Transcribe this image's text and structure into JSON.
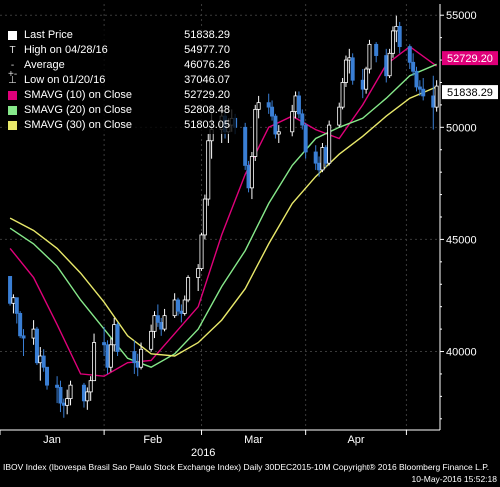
{
  "chart_data": {
    "type": "candlestick",
    "y_axis": {
      "ticks": [
        40000,
        45000,
        50000,
        55000
      ],
      "tick_labels": [
        "40000",
        "45000",
        "50000",
        "55000"
      ],
      "range": [
        36500,
        55500
      ],
      "side": "right",
      "gridlines": true
    },
    "x_axis": {
      "month_labels": [
        "Jan",
        "Feb",
        "Mar",
        "Apr"
      ],
      "year_label": "2016",
      "range_start": "2016-01-01",
      "range_end": "2016-05-11"
    },
    "legend": [
      {
        "label": "Last Price",
        "value": "51838.29",
        "color": "#ffffff",
        "symbol": "box"
      },
      {
        "label": "High on 04/28/16",
        "value": "54977.70",
        "color": "#dddddd",
        "symbol": "T"
      },
      {
        "label": "Average",
        "value": "46076.26",
        "color": "#dddddd",
        "symbol": "-+-"
      },
      {
        "label": "Low on 01/20/16",
        "value": "37046.07",
        "color": "#dddddd",
        "symbol": "⊥"
      },
      {
        "label": "SMAVG (10) on Close",
        "value": "52729.20",
        "color": "#e0007a",
        "symbol": "box"
      },
      {
        "label": "SMAVG (20) on Close",
        "value": "52808.48",
        "color": "#86e88a",
        "symbol": "box"
      },
      {
        "label": "SMAVG (30) on Close",
        "value": "51803.05",
        "color": "#e8e86a",
        "symbol": "box"
      }
    ],
    "price_tags": [
      {
        "value": 52729.2,
        "text": "52729.20",
        "bg": "#e0007a",
        "fg": "#ffffff"
      },
      {
        "value": 51838.29,
        "text": "51838.29",
        "bg": "#ffffff",
        "fg": "#000000"
      }
    ],
    "candles": [
      {
        "d": "2016-01-04",
        "o": 43350,
        "h": 43350,
        "l": 42050,
        "c": 42150
      },
      {
        "d": "2016-01-05",
        "o": 42150,
        "h": 42550,
        "l": 41700,
        "c": 42400
      },
      {
        "d": "2016-01-06",
        "o": 42400,
        "h": 42400,
        "l": 41250,
        "c": 41700
      },
      {
        "d": "2016-01-07",
        "o": 41700,
        "h": 41800,
        "l": 40600,
        "c": 40700
      },
      {
        "d": "2016-01-08",
        "o": 40700,
        "h": 41000,
        "l": 39800,
        "c": 40600
      },
      {
        "d": "2016-01-11",
        "o": 40600,
        "h": 41400,
        "l": 40300,
        "c": 41000
      },
      {
        "d": "2016-01-12",
        "o": 41000,
        "h": 41100,
        "l": 39400,
        "c": 39500
      },
      {
        "d": "2016-01-13",
        "o": 39500,
        "h": 40200,
        "l": 38700,
        "c": 39800
      },
      {
        "d": "2016-01-14",
        "o": 39800,
        "h": 40100,
        "l": 39100,
        "c": 39300
      },
      {
        "d": "2016-01-15",
        "o": 39300,
        "h": 39300,
        "l": 38300,
        "c": 38500
      },
      {
        "d": "2016-01-18",
        "o": 38500,
        "h": 38900,
        "l": 37700,
        "c": 38400
      },
      {
        "d": "2016-01-19",
        "o": 38400,
        "h": 38700,
        "l": 37300,
        "c": 37700
      },
      {
        "d": "2016-01-20",
        "o": 37700,
        "h": 37900,
        "l": 37046,
        "c": 37600
      },
      {
        "d": "2016-01-21",
        "o": 37600,
        "h": 38300,
        "l": 37200,
        "c": 37900
      },
      {
        "d": "2016-01-22",
        "o": 37900,
        "h": 38700,
        "l": 37600,
        "c": 38500
      },
      {
        "d": "2016-01-26",
        "o": 38500,
        "h": 38600,
        "l": 37500,
        "c": 37800
      },
      {
        "d": "2016-01-27",
        "o": 37800,
        "h": 38400,
        "l": 37400,
        "c": 38200
      },
      {
        "d": "2016-01-28",
        "o": 38200,
        "h": 38900,
        "l": 37800,
        "c": 38700
      },
      {
        "d": "2016-01-29",
        "o": 38700,
        "h": 40800,
        "l": 38700,
        "c": 40400
      },
      {
        "d": "2016-02-01",
        "o": 40400,
        "h": 41100,
        "l": 39800,
        "c": 40300
      },
      {
        "d": "2016-02-02",
        "o": 40300,
        "h": 40500,
        "l": 39000,
        "c": 39300
      },
      {
        "d": "2016-02-03",
        "o": 39300,
        "h": 40600,
        "l": 39100,
        "c": 40300
      },
      {
        "d": "2016-02-04",
        "o": 40300,
        "h": 41500,
        "l": 40000,
        "c": 41200
      },
      {
        "d": "2016-02-05",
        "o": 41200,
        "h": 41300,
        "l": 39800,
        "c": 40000
      },
      {
        "d": "2016-02-10",
        "o": 40000,
        "h": 40500,
        "l": 39000,
        "c": 39500
      },
      {
        "d": "2016-02-11",
        "o": 39500,
        "h": 39900,
        "l": 38900,
        "c": 39300
      },
      {
        "d": "2016-02-12",
        "o": 39300,
        "h": 40400,
        "l": 39200,
        "c": 40100
      },
      {
        "d": "2016-02-15",
        "o": 40100,
        "h": 41200,
        "l": 40000,
        "c": 40900
      },
      {
        "d": "2016-02-16",
        "o": 40900,
        "h": 41800,
        "l": 40600,
        "c": 41600
      },
      {
        "d": "2016-02-17",
        "o": 41600,
        "h": 42100,
        "l": 41100,
        "c": 41300
      },
      {
        "d": "2016-02-18",
        "o": 41300,
        "h": 41500,
        "l": 40700,
        "c": 41000
      },
      {
        "d": "2016-02-19",
        "o": 41000,
        "h": 41900,
        "l": 40900,
        "c": 41600
      },
      {
        "d": "2016-02-22",
        "o": 41600,
        "h": 42600,
        "l": 41500,
        "c": 42300
      },
      {
        "d": "2016-02-23",
        "o": 42300,
        "h": 42400,
        "l": 41600,
        "c": 41800
      },
      {
        "d": "2016-02-24",
        "o": 41800,
        "h": 42100,
        "l": 41300,
        "c": 41700
      },
      {
        "d": "2016-02-25",
        "o": 41700,
        "h": 42500,
        "l": 41600,
        "c": 42300
      },
      {
        "d": "2016-02-26",
        "o": 42300,
        "h": 43400,
        "l": 42200,
        "c": 43300
      },
      {
        "d": "2016-02-29",
        "o": 43300,
        "h": 43900,
        "l": 42700,
        "c": 43700
      },
      {
        "d": "2016-03-01",
        "o": 43700,
        "h": 45300,
        "l": 43600,
        "c": 45200
      },
      {
        "d": "2016-03-02",
        "o": 45200,
        "h": 47000,
        "l": 45000,
        "c": 46800
      },
      {
        "d": "2016-03-03",
        "o": 46800,
        "h": 49700,
        "l": 46500,
        "c": 49400
      },
      {
        "d": "2016-03-04",
        "o": 49400,
        "h": 50900,
        "l": 48600,
        "c": 49900
      },
      {
        "d": "2016-03-07",
        "o": 49900,
        "h": 51000,
        "l": 49300,
        "c": 50500
      },
      {
        "d": "2016-03-08",
        "o": 50500,
        "h": 50700,
        "l": 49500,
        "c": 49800
      },
      {
        "d": "2016-03-09",
        "o": 49800,
        "h": 50400,
        "l": 49300,
        "c": 50100
      },
      {
        "d": "2016-03-10",
        "o": 50100,
        "h": 50800,
        "l": 49800,
        "c": 50400
      },
      {
        "d": "2016-03-11",
        "o": 50400,
        "h": 50600,
        "l": 49700,
        "c": 50000
      },
      {
        "d": "2016-03-14",
        "o": 50000,
        "h": 50200,
        "l": 48100,
        "c": 48300
      },
      {
        "d": "2016-03-15",
        "o": 48300,
        "h": 48500,
        "l": 47100,
        "c": 47300
      },
      {
        "d": "2016-03-16",
        "o": 47300,
        "h": 48900,
        "l": 46800,
        "c": 48700
      },
      {
        "d": "2016-03-17",
        "o": 48700,
        "h": 51000,
        "l": 48500,
        "c": 50800
      },
      {
        "d": "2016-03-18",
        "o": 50800,
        "h": 51400,
        "l": 50400,
        "c": 51100
      },
      {
        "d": "2016-03-21",
        "o": 51100,
        "h": 51500,
        "l": 50600,
        "c": 50900
      },
      {
        "d": "2016-03-22",
        "o": 50900,
        "h": 51200,
        "l": 50300,
        "c": 50500
      },
      {
        "d": "2016-03-23",
        "o": 50500,
        "h": 50600,
        "l": 49500,
        "c": 49700
      },
      {
        "d": "2016-03-24",
        "o": 49700,
        "h": 50100,
        "l": 49300,
        "c": 49800
      },
      {
        "d": "2016-03-28",
        "o": 49800,
        "h": 51000,
        "l": 49600,
        "c": 50700
      },
      {
        "d": "2016-03-29",
        "o": 50700,
        "h": 51600,
        "l": 50400,
        "c": 51400
      },
      {
        "d": "2016-03-30",
        "o": 51400,
        "h": 51600,
        "l": 50400,
        "c": 50600
      },
      {
        "d": "2016-03-31",
        "o": 50600,
        "h": 50800,
        "l": 49900,
        "c": 50100
      },
      {
        "d": "2016-04-01",
        "o": 50100,
        "h": 50200,
        "l": 48600,
        "c": 48900
      },
      {
        "d": "2016-04-04",
        "o": 48900,
        "h": 49200,
        "l": 48100,
        "c": 48400
      },
      {
        "d": "2016-04-05",
        "o": 48400,
        "h": 48700,
        "l": 47800,
        "c": 48100
      },
      {
        "d": "2016-04-06",
        "o": 48100,
        "h": 49300,
        "l": 48000,
        "c": 49100
      },
      {
        "d": "2016-04-07",
        "o": 49100,
        "h": 49200,
        "l": 48200,
        "c": 48400
      },
      {
        "d": "2016-04-08",
        "o": 48400,
        "h": 50300,
        "l": 48300,
        "c": 50100
      },
      {
        "d": "2016-04-11",
        "o": 50100,
        "h": 51100,
        "l": 50000,
        "c": 50900
      },
      {
        "d": "2016-04-12",
        "o": 50900,
        "h": 52200,
        "l": 50800,
        "c": 52000
      },
      {
        "d": "2016-04-13",
        "o": 52000,
        "h": 53200,
        "l": 51800,
        "c": 53000
      },
      {
        "d": "2016-04-14",
        "o": 53000,
        "h": 53500,
        "l": 52400,
        "c": 53100
      },
      {
        "d": "2016-04-15",
        "o": 53100,
        "h": 53300,
        "l": 51900,
        "c": 52100
      },
      {
        "d": "2016-04-18",
        "o": 52100,
        "h": 52600,
        "l": 51300,
        "c": 51700
      },
      {
        "d": "2016-04-19",
        "o": 51700,
        "h": 52700,
        "l": 51500,
        "c": 52600
      },
      {
        "d": "2016-04-20",
        "o": 52600,
        "h": 53900,
        "l": 52400,
        "c": 53700
      },
      {
        "d": "2016-04-22",
        "o": 53700,
        "h": 53800,
        "l": 52900,
        "c": 53200
      },
      {
        "d": "2016-04-25",
        "o": 53200,
        "h": 53500,
        "l": 52000,
        "c": 52300
      },
      {
        "d": "2016-04-26",
        "o": 52300,
        "h": 53500,
        "l": 52200,
        "c": 53300
      },
      {
        "d": "2016-04-27",
        "o": 53300,
        "h": 54500,
        "l": 53100,
        "c": 54300
      },
      {
        "d": "2016-04-28",
        "o": 54300,
        "h": 54977.7,
        "l": 53800,
        "c": 54500
      },
      {
        "d": "2016-04-29",
        "o": 54500,
        "h": 54700,
        "l": 53300,
        "c": 53600
      },
      {
        "d": "2016-05-02",
        "o": 53600,
        "h": 53700,
        "l": 52600,
        "c": 52900
      },
      {
        "d": "2016-05-03",
        "o": 52900,
        "h": 53300,
        "l": 52300,
        "c": 52500
      },
      {
        "d": "2016-05-04",
        "o": 52500,
        "h": 52700,
        "l": 51600,
        "c": 51800
      },
      {
        "d": "2016-05-05",
        "o": 51800,
        "h": 52100,
        "l": 51400,
        "c": 51700
      },
      {
        "d": "2016-05-06",
        "o": 51700,
        "h": 52200,
        "l": 51200,
        "c": 51400
      },
      {
        "d": "2016-05-09",
        "o": 51400,
        "h": 52300,
        "l": 49900,
        "c": 50900
      },
      {
        "d": "2016-05-10",
        "o": 50900,
        "h": 52100,
        "l": 50700,
        "c": 51838.29
      }
    ],
    "moving_averages": [
      {
        "name": "SMAVG (10)",
        "color": "#e0007a",
        "points": [
          [
            "2016-01-04",
            44600
          ],
          [
            "2016-01-11",
            43300
          ],
          [
            "2016-01-18",
            41200
          ],
          [
            "2016-01-25",
            39000
          ],
          [
            "2016-02-01",
            38900
          ],
          [
            "2016-02-08",
            39500
          ],
          [
            "2016-02-15",
            39600
          ],
          [
            "2016-02-22",
            40800
          ],
          [
            "2016-02-29",
            42000
          ],
          [
            "2016-03-07",
            45200
          ],
          [
            "2016-03-14",
            47900
          ],
          [
            "2016-03-21",
            50000
          ],
          [
            "2016-03-28",
            50500
          ],
          [
            "2016-04-04",
            49900
          ],
          [
            "2016-04-11",
            49500
          ],
          [
            "2016-04-18",
            51000
          ],
          [
            "2016-04-25",
            52800
          ],
          [
            "2016-05-02",
            53600
          ],
          [
            "2016-05-10",
            52729.2
          ]
        ]
      },
      {
        "name": "SMAVG (20)",
        "color": "#86e88a",
        "points": [
          [
            "2016-01-04",
            45500
          ],
          [
            "2016-01-11",
            44800
          ],
          [
            "2016-01-18",
            43800
          ],
          [
            "2016-01-25",
            42300
          ],
          [
            "2016-02-01",
            41000
          ],
          [
            "2016-02-08",
            39700
          ],
          [
            "2016-02-15",
            39300
          ],
          [
            "2016-02-22",
            39900
          ],
          [
            "2016-02-29",
            41000
          ],
          [
            "2016-03-07",
            42900
          ],
          [
            "2016-03-14",
            44500
          ],
          [
            "2016-03-21",
            46600
          ],
          [
            "2016-03-28",
            48300
          ],
          [
            "2016-04-04",
            49500
          ],
          [
            "2016-04-11",
            50000
          ],
          [
            "2016-04-18",
            50400
          ],
          [
            "2016-04-25",
            51300
          ],
          [
            "2016-05-02",
            52300
          ],
          [
            "2016-05-10",
            52808.48
          ]
        ]
      },
      {
        "name": "SMAVG (30)",
        "color": "#e8e86a",
        "points": [
          [
            "2016-01-04",
            45950
          ],
          [
            "2016-01-11",
            45400
          ],
          [
            "2016-01-18",
            44600
          ],
          [
            "2016-01-25",
            43500
          ],
          [
            "2016-02-01",
            42200
          ],
          [
            "2016-02-08",
            40700
          ],
          [
            "2016-02-15",
            39900
          ],
          [
            "2016-02-22",
            39800
          ],
          [
            "2016-02-29",
            40400
          ],
          [
            "2016-03-07",
            41400
          ],
          [
            "2016-03-14",
            42800
          ],
          [
            "2016-03-21",
            44800
          ],
          [
            "2016-03-28",
            46600
          ],
          [
            "2016-04-04",
            47800
          ],
          [
            "2016-04-11",
            48800
          ],
          [
            "2016-04-18",
            49600
          ],
          [
            "2016-04-25",
            50500
          ],
          [
            "2016-05-02",
            51300
          ],
          [
            "2016-05-10",
            51803.05
          ]
        ]
      }
    ]
  },
  "footer": {
    "description": "IBOV Index (Ibovespa Brasil Sao Paulo Stock Exchange Index)  Daily 30DEC2015-10M  Copyright® 2016 Bloomberg Finance L.P.",
    "timestamp": "10-May-2016 15:52:18"
  },
  "colors": {
    "up_candle": "#ffffff",
    "down_candle": "#3a7fd5",
    "grid": "#3a3a3a",
    "axis": "#ffffff"
  }
}
